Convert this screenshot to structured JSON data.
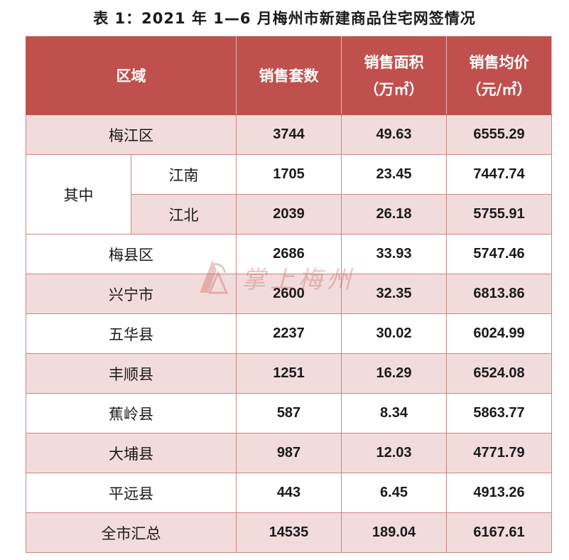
{
  "title": "表 1：2021 年 1—6 月梅州市新建商品住宅网签情况",
  "header": {
    "region": "区域",
    "sets": "销售套数",
    "area_line1": "销售面积",
    "area_line2": "（万㎡）",
    "price_line1": "销售均价",
    "price_line2": "（元/㎡）"
  },
  "sub_group_label": "其中",
  "rows": [
    {
      "region": "梅江区",
      "sets": "3744",
      "area": "49.63",
      "price": "6555.29"
    },
    {
      "region": "江南",
      "sets": "1705",
      "area": "23.45",
      "price": "7447.74"
    },
    {
      "region": "江北",
      "sets": "2039",
      "area": "26.18",
      "price": "5755.91"
    },
    {
      "region": "梅县区",
      "sets": "2686",
      "area": "33.93",
      "price": "5747.46"
    },
    {
      "region": "兴宁市",
      "sets": "2600",
      "area": "32.35",
      "price": "6813.86"
    },
    {
      "region": "五华县",
      "sets": "2237",
      "area": "30.02",
      "price": "6024.99"
    },
    {
      "region": "丰顺县",
      "sets": "1251",
      "area": "16.29",
      "price": "6524.08"
    },
    {
      "region": "蕉岭县",
      "sets": "587",
      "area": "8.34",
      "price": "5863.77"
    },
    {
      "region": "大埔县",
      "sets": "987",
      "area": "12.03",
      "price": "4771.79"
    },
    {
      "region": "平远县",
      "sets": "443",
      "area": "6.45",
      "price": "4913.26"
    },
    {
      "region": "全市汇总",
      "sets": "14535",
      "area": "189.04",
      "price": "6167.61"
    }
  ],
  "watermark": {
    "text": "掌上梅州",
    "color": "#c0504d"
  },
  "colors": {
    "header_bg": "#c0504d",
    "shade_bg": "#f2dcdb",
    "border": "#c98585"
  }
}
